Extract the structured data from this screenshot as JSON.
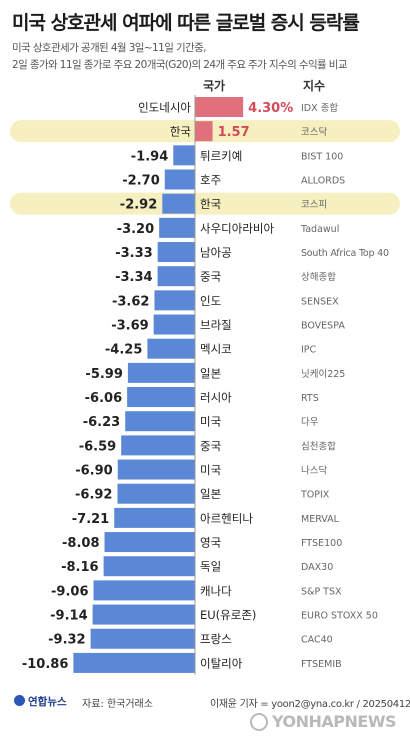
{
  "title": "미국 상호관세 여파에 따른 글로벌 증시 등락률",
  "subtitle": [
    "미국 상호관세가 공개된 4월 3일~11일 기간중,",
    "2일 종가와 11일 종가로 주요 20개국(G20)의 24개 주요 주가 지수의 수익률 비교"
  ],
  "colors": {
    "negative_bar": "#5b88d6",
    "positive_bar": "#e0707c",
    "positive_text": "#d14b5a",
    "highlight": "#f6efc0",
    "text": "#222222",
    "index_text": "#666666"
  },
  "chart_data": {
    "type": "bar",
    "orientation": "horizontal",
    "column_headers": {
      "country": "국가",
      "index": "지수"
    },
    "units": "%",
    "rows": [
      {
        "country": "인도네시아",
        "index": "IDX 종합",
        "value": 4.3,
        "label": "4.30%",
        "highlight": false
      },
      {
        "country": "한국",
        "index": "코스닥",
        "value": 1.57,
        "label": "1.57",
        "highlight": true
      },
      {
        "country": "튀르키예",
        "index": "BIST 100",
        "value": -1.94,
        "label": "-1.94",
        "highlight": false
      },
      {
        "country": "호주",
        "index": "ALLORDS",
        "value": -2.7,
        "label": "-2.70",
        "highlight": false
      },
      {
        "country": "한국",
        "index": "코스피",
        "value": -2.92,
        "label": "-2.92",
        "highlight": true
      },
      {
        "country": "사우디아라비아",
        "index": "Tadawul",
        "value": -3.2,
        "label": "-3.20",
        "highlight": false
      },
      {
        "country": "남아공",
        "index": "South Africa Top 40",
        "value": -3.33,
        "label": "-3.33",
        "highlight": false
      },
      {
        "country": "중국",
        "index": "상해종합",
        "value": -3.34,
        "label": "-3.34",
        "highlight": false
      },
      {
        "country": "인도",
        "index": "SENSEX",
        "value": -3.62,
        "label": "-3.62",
        "highlight": false
      },
      {
        "country": "브라질",
        "index": "BOVESPA",
        "value": -3.69,
        "label": "-3.69",
        "highlight": false
      },
      {
        "country": "멕시코",
        "index": "IPC",
        "value": -4.25,
        "label": "-4.25",
        "highlight": false
      },
      {
        "country": "일본",
        "index": "닛케이225",
        "value": -5.99,
        "label": "-5.99",
        "highlight": false
      },
      {
        "country": "러시아",
        "index": "RTS",
        "value": -6.06,
        "label": "-6.06",
        "highlight": false
      },
      {
        "country": "미국",
        "index": "다우",
        "value": -6.23,
        "label": "-6.23",
        "highlight": false
      },
      {
        "country": "중국",
        "index": "심천종합",
        "value": -6.59,
        "label": "-6.59",
        "highlight": false
      },
      {
        "country": "미국",
        "index": "나스닥",
        "value": -6.9,
        "label": "-6.90",
        "highlight": false
      },
      {
        "country": "일본",
        "index": "TOPIX",
        "value": -6.92,
        "label": "-6.92",
        "highlight": false
      },
      {
        "country": "아르헨티나",
        "index": "MERVAL",
        "value": -7.21,
        "label": "-7.21",
        "highlight": false
      },
      {
        "country": "영국",
        "index": "FTSE100",
        "value": -8.08,
        "label": "-8.08",
        "highlight": false
      },
      {
        "country": "독일",
        "index": "DAX30",
        "value": -8.16,
        "label": "-8.16",
        "highlight": false
      },
      {
        "country": "캐나다",
        "index": "S&P TSX",
        "value": -9.06,
        "label": "-9.06",
        "highlight": false
      },
      {
        "country": "EU(유로존)",
        "index": "EURO STOXX 50",
        "value": -9.14,
        "label": "-9.14",
        "highlight": false
      },
      {
        "country": "프랑스",
        "index": "CAC40",
        "value": -9.32,
        "label": "-9.32",
        "highlight": false
      },
      {
        "country": "이탈리아",
        "index": "FTSEMIB",
        "value": -10.86,
        "label": "-10.86",
        "highlight": false
      }
    ]
  },
  "footer": {
    "logo": "연합뉴스",
    "source": "자료: 한국거래소",
    "credit": "이재윤 기자 = yoon2@yna.co.kr / 20250412",
    "watermark": "YONHAPNEWS"
  }
}
